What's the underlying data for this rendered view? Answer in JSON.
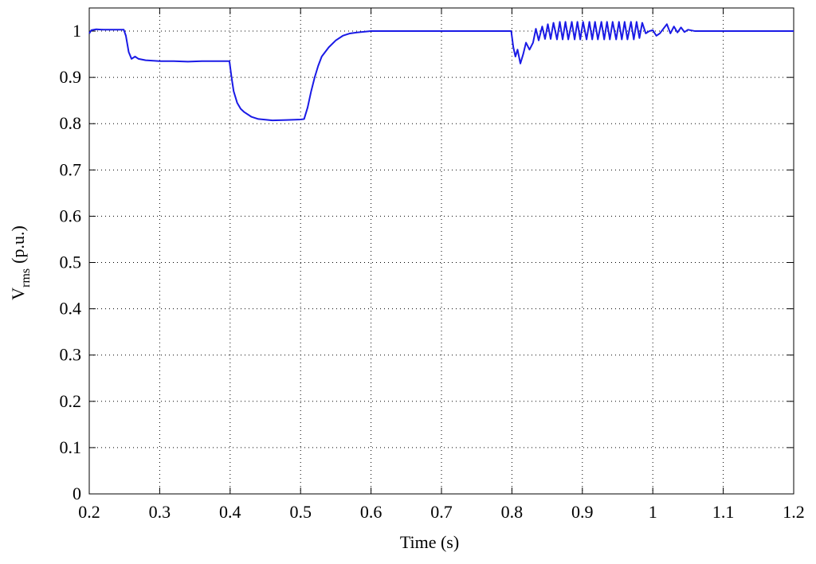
{
  "chart_data": {
    "type": "line",
    "xlabel": "Time (s)",
    "ylabel": {
      "main": "V",
      "sub": "rms",
      "rest": "(p.u.)"
    },
    "xlim": [
      0.2,
      1.2
    ],
    "ylim": [
      0,
      1.05
    ],
    "xticks": [
      0.2,
      0.3,
      0.4,
      0.5,
      0.6,
      0.7,
      0.8,
      0.9,
      1,
      1.1,
      1.2
    ],
    "yticks": [
      0,
      0.1,
      0.2,
      0.3,
      0.4,
      0.5,
      0.6,
      0.7,
      0.8,
      0.9,
      1
    ],
    "grid": true,
    "x": [
      0.2,
      0.203,
      0.21,
      0.22,
      0.23,
      0.24,
      0.249,
      0.252,
      0.256,
      0.26,
      0.265,
      0.27,
      0.28,
      0.3,
      0.32,
      0.34,
      0.36,
      0.38,
      0.399,
      0.402,
      0.405,
      0.41,
      0.415,
      0.42,
      0.43,
      0.44,
      0.46,
      0.48,
      0.5,
      0.505,
      0.51,
      0.515,
      0.52,
      0.525,
      0.53,
      0.54,
      0.55,
      0.56,
      0.57,
      0.58,
      0.6,
      0.65,
      0.7,
      0.75,
      0.799,
      0.802,
      0.805,
      0.808,
      0.812,
      0.816,
      0.82,
      0.825,
      0.83,
      0.834,
      0.838,
      0.843,
      0.847,
      0.851,
      0.855,
      0.859,
      0.864,
      0.868,
      0.872,
      0.876,
      0.88,
      0.885,
      0.889,
      0.893,
      0.897,
      0.901,
      0.906,
      0.91,
      0.914,
      0.918,
      0.922,
      0.927,
      0.931,
      0.935,
      0.939,
      0.943,
      0.948,
      0.952,
      0.956,
      0.96,
      0.964,
      0.969,
      0.973,
      0.977,
      0.981,
      0.985,
      0.99,
      0.995,
      1.0,
      1.005,
      1.01,
      1.015,
      1.02,
      1.025,
      1.03,
      1.035,
      1.04,
      1.045,
      1.05,
      1.06,
      1.08,
      1.1,
      1.15,
      1.2
    ],
    "series": [
      {
        "color": "#1a1ae6",
        "values": [
          0.995,
          1.002,
          1.004,
          1.003,
          1.003,
          1.003,
          1.003,
          0.99,
          0.955,
          0.94,
          0.945,
          0.94,
          0.937,
          0.935,
          0.935,
          0.934,
          0.935,
          0.935,
          0.935,
          0.9,
          0.87,
          0.845,
          0.832,
          0.825,
          0.815,
          0.81,
          0.807,
          0.808,
          0.809,
          0.81,
          0.835,
          0.87,
          0.9,
          0.925,
          0.945,
          0.965,
          0.98,
          0.99,
          0.995,
          0.997,
          1.0,
          1.0,
          1.0,
          1.0,
          1.0,
          0.965,
          0.945,
          0.96,
          0.93,
          0.95,
          0.975,
          0.96,
          0.975,
          1.005,
          0.98,
          1.01,
          0.983,
          1.015,
          0.983,
          1.018,
          0.982,
          1.02,
          0.982,
          1.02,
          0.982,
          1.02,
          0.982,
          1.02,
          0.982,
          1.02,
          0.982,
          1.02,
          0.982,
          1.02,
          0.982,
          1.02,
          0.982,
          1.02,
          0.982,
          1.02,
          0.982,
          1.02,
          0.982,
          1.02,
          0.982,
          1.02,
          0.982,
          1.02,
          0.985,
          1.018,
          0.995,
          1.0,
          1.002,
          0.99,
          0.995,
          1.005,
          1.015,
          0.995,
          1.01,
          0.997,
          1.008,
          0.998,
          1.003,
          1.0,
          1.0,
          1.0,
          1.0,
          1.0
        ]
      }
    ]
  }
}
